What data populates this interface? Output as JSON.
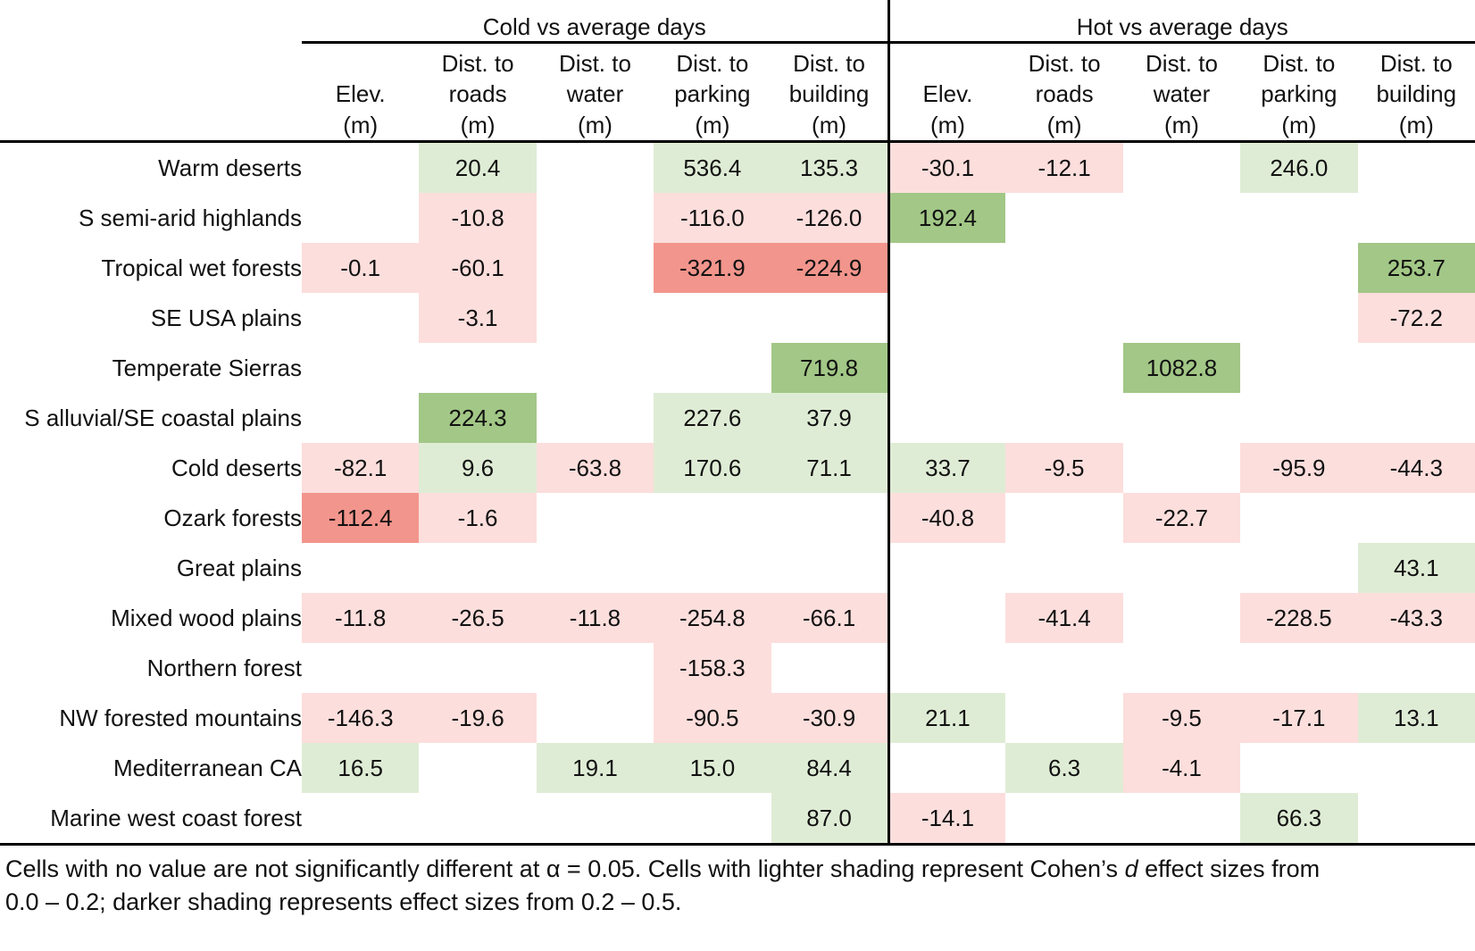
{
  "groups": {
    "cold": "Cold vs average days",
    "hot": "Hot vs average days"
  },
  "columns": [
    {
      "top": "",
      "mid": "Elev.",
      "unit": "(m)"
    },
    {
      "top": "Dist. to",
      "mid": "roads",
      "unit": "(m)"
    },
    {
      "top": "Dist. to",
      "mid": "water",
      "unit": "(m)"
    },
    {
      "top": "Dist. to",
      "mid": "parking",
      "unit": "(m)"
    },
    {
      "top": "Dist. to",
      "mid": "building",
      "unit": "(m)"
    }
  ],
  "colors": {
    "lg": "#dfecd5",
    "dg": "#a2c786",
    "lp": "#fcdedc",
    "dr": "#f2958c",
    "none": "#ffffff"
  },
  "chart_data": {
    "type": "heatmap",
    "title": "",
    "legend_note": "lighter shading = Cohen's d 0.0-0.2, darker shading = 0.2-0.5; green = positive, red = negative",
    "column_groups": [
      "Cold vs average days",
      "Hot vs average days"
    ],
    "variables": [
      "Elev. (m)",
      "Dist. to roads (m)",
      "Dist. to water (m)",
      "Dist. to parking (m)",
      "Dist. to building (m)"
    ]
  },
  "rows": [
    {
      "label": "Warm deserts",
      "cells": [
        null,
        {
          "v": "20.4",
          "s": "lg"
        },
        null,
        {
          "v": "536.4",
          "s": "lg"
        },
        {
          "v": "135.3",
          "s": "lg"
        },
        {
          "v": "-30.1",
          "s": "lp"
        },
        {
          "v": "-12.1",
          "s": "lp"
        },
        null,
        {
          "v": "246.0",
          "s": "lg"
        },
        null
      ]
    },
    {
      "label": "S semi-arid highlands",
      "cells": [
        null,
        {
          "v": "-10.8",
          "s": "lp"
        },
        null,
        {
          "v": "-116.0",
          "s": "lp"
        },
        {
          "v": "-126.0",
          "s": "lp"
        },
        {
          "v": "192.4",
          "s": "dg"
        },
        null,
        null,
        null,
        null
      ]
    },
    {
      "label": "Tropical wet forests",
      "cells": [
        {
          "v": "-0.1",
          "s": "lp"
        },
        {
          "v": "-60.1",
          "s": "lp"
        },
        null,
        {
          "v": "-321.9",
          "s": "dr"
        },
        {
          "v": "-224.9",
          "s": "dr"
        },
        null,
        null,
        null,
        null,
        {
          "v": "253.7",
          "s": "dg"
        }
      ]
    },
    {
      "label": "SE USA plains",
      "cells": [
        null,
        {
          "v": "-3.1",
          "s": "lp"
        },
        null,
        null,
        null,
        null,
        null,
        null,
        null,
        {
          "v": "-72.2",
          "s": "lp"
        }
      ]
    },
    {
      "label": "Temperate Sierras",
      "cells": [
        null,
        null,
        null,
        null,
        {
          "v": "719.8",
          "s": "dg"
        },
        null,
        null,
        {
          "v": "1082.8",
          "s": "dg"
        },
        null,
        null
      ]
    },
    {
      "label": "S alluvial/SE coastal plains",
      "cells": [
        null,
        {
          "v": "224.3",
          "s": "dg"
        },
        null,
        {
          "v": "227.6",
          "s": "lg"
        },
        {
          "v": "37.9",
          "s": "lg"
        },
        null,
        null,
        null,
        null,
        null
      ]
    },
    {
      "label": "Cold deserts",
      "cells": [
        {
          "v": "-82.1",
          "s": "lp"
        },
        {
          "v": "9.6",
          "s": "lg"
        },
        {
          "v": "-63.8",
          "s": "lp"
        },
        {
          "v": "170.6",
          "s": "lg"
        },
        {
          "v": "71.1",
          "s": "lg"
        },
        {
          "v": "33.7",
          "s": "lg"
        },
        {
          "v": "-9.5",
          "s": "lp"
        },
        null,
        {
          "v": "-95.9",
          "s": "lp"
        },
        {
          "v": "-44.3",
          "s": "lp"
        }
      ]
    },
    {
      "label": "Ozark forests",
      "cells": [
        {
          "v": "-112.4",
          "s": "dr"
        },
        {
          "v": "-1.6",
          "s": "lp"
        },
        null,
        null,
        null,
        {
          "v": "-40.8",
          "s": "lp"
        },
        null,
        {
          "v": "-22.7",
          "s": "lp"
        },
        null,
        null
      ]
    },
    {
      "label": "Great plains",
      "cells": [
        null,
        null,
        null,
        null,
        null,
        null,
        null,
        null,
        null,
        {
          "v": "43.1",
          "s": "lg"
        }
      ]
    },
    {
      "label": "Mixed wood plains",
      "cells": [
        {
          "v": "-11.8",
          "s": "lp"
        },
        {
          "v": "-26.5",
          "s": "lp"
        },
        {
          "v": "-11.8",
          "s": "lp"
        },
        {
          "v": "-254.8",
          "s": "lp"
        },
        {
          "v": "-66.1",
          "s": "lp"
        },
        null,
        {
          "v": "-41.4",
          "s": "lp"
        },
        null,
        {
          "v": "-228.5",
          "s": "lp"
        },
        {
          "v": "-43.3",
          "s": "lp"
        }
      ]
    },
    {
      "label": "Northern forest",
      "cells": [
        null,
        null,
        null,
        {
          "v": "-158.3",
          "s": "lp"
        },
        null,
        null,
        null,
        null,
        null,
        null
      ]
    },
    {
      "label": "NW forested mountains",
      "cells": [
        {
          "v": "-146.3",
          "s": "lp"
        },
        {
          "v": "-19.6",
          "s": "lp"
        },
        null,
        {
          "v": "-90.5",
          "s": "lp"
        },
        {
          "v": "-30.9",
          "s": "lp"
        },
        {
          "v": "21.1",
          "s": "lg"
        },
        null,
        {
          "v": "-9.5",
          "s": "lp"
        },
        {
          "v": "-17.1",
          "s": "lp"
        },
        {
          "v": "13.1",
          "s": "lg"
        }
      ]
    },
    {
      "label": "Mediterranean CA",
      "cells": [
        {
          "v": "16.5",
          "s": "lg"
        },
        null,
        {
          "v": "19.1",
          "s": "lg"
        },
        {
          "v": "15.0",
          "s": "lg"
        },
        {
          "v": "84.4",
          "s": "lg"
        },
        null,
        {
          "v": "6.3",
          "s": "lg"
        },
        {
          "v": "-4.1",
          "s": "lp"
        },
        null,
        null
      ]
    },
    {
      "label": "Marine west coast forest",
      "cells": [
        null,
        null,
        null,
        null,
        {
          "v": "87.0",
          "s": "lg"
        },
        {
          "v": "-14.1",
          "s": "lp"
        },
        null,
        null,
        {
          "v": "66.3",
          "s": "lg"
        },
        null
      ]
    }
  ],
  "footnote": {
    "line1_pre": "Cells with no value are not significantly different at α = 0.05. Cells with lighter shading represent Cohen’s ",
    "line1_italic": "d",
    "line1_post": " effect sizes from",
    "line2": "0.0 – 0.2; darker shading represents effect sizes from 0.2 – 0.5."
  }
}
